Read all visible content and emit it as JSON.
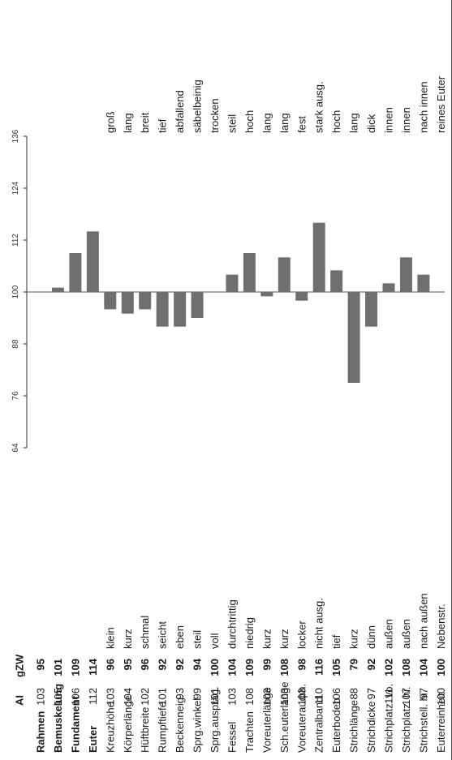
{
  "chart_data": {
    "type": "bar",
    "orientation": "rotated-90-ccw",
    "title": "",
    "xlabel": "",
    "ylabel": "",
    "ylim": [
      64,
      136
    ],
    "yticks": [
      "64",
      "76",
      "88",
      "100",
      "112",
      "124",
      "136"
    ],
    "baseline": 100,
    "grid": false,
    "col_headers": {
      "ai": "AI",
      "gzw": "gZW"
    },
    "bar_color": "#6f6f6f",
    "rows": [
      {
        "name": "Rahmen",
        "ai": "103",
        "gzw": "95",
        "left": "",
        "right": "",
        "bold": true,
        "bar": false
      },
      {
        "name": "Bemuskelung",
        "ai": "105",
        "gzw": "101",
        "left": "",
        "right": "",
        "bold": true,
        "bar": true
      },
      {
        "name": "Fundament",
        "ai": "106",
        "gzw": "109",
        "left": "",
        "right": "",
        "bold": true,
        "bar": true
      },
      {
        "name": "Euter",
        "ai": "112",
        "gzw": "114",
        "left": "",
        "right": "",
        "bold": true,
        "bar": true
      },
      {
        "name": "Kreuzhöhe",
        "ai": "103",
        "gzw": "96",
        "left": "klein",
        "right": "groß",
        "bold": false,
        "bar": true
      },
      {
        "name": "Körperlänge",
        "ai": "104",
        "gzw": "95",
        "left": "kurz",
        "right": "lang",
        "bold": false,
        "bar": true
      },
      {
        "name": "Hüftbreite",
        "ai": "102",
        "gzw": "96",
        "left": "schmal",
        "right": "breit",
        "bold": false,
        "bar": true
      },
      {
        "name": "Rumpftiefe",
        "ai": "101",
        "gzw": "92",
        "left": "seicht",
        "right": "tief",
        "bold": false,
        "bar": true
      },
      {
        "name": "Beckenneig.",
        "ai": "93",
        "gzw": "92",
        "left": "eben",
        "right": "abfallend",
        "bold": false,
        "bar": true
      },
      {
        "name": "Sprg.winkel",
        "ai": "99",
        "gzw": "94",
        "left": "steil",
        "right": "säbelbeinig",
        "bold": false,
        "bar": true
      },
      {
        "name": "Sprg.auspräg.",
        "ai": "101",
        "gzw": "100",
        "left": "voll",
        "right": "trocken",
        "bold": false,
        "bar": true
      },
      {
        "name": "Fessel",
        "ai": "103",
        "gzw": "104",
        "left": "durchtrittig",
        "right": "steil",
        "bold": false,
        "bar": true
      },
      {
        "name": "Trachten",
        "ai": "108",
        "gzw": "109",
        "left": "niedrig",
        "right": "hoch",
        "bold": false,
        "bar": true
      },
      {
        "name": "Voreuterlänge",
        "ai": "103",
        "gzw": "99",
        "left": "kurz",
        "right": "lang",
        "bold": false,
        "bar": true
      },
      {
        "name": "Sch.euterlänge",
        "ai": "103",
        "gzw": "108",
        "left": "kurz",
        "right": "lang",
        "bold": false,
        "bar": true
      },
      {
        "name": "Voreuterauфh.",
        "ai": "103",
        "gzw": "98",
        "left": "locker",
        "right": "fest",
        "bold": false,
        "bar": true
      },
      {
        "name": "Zentralband",
        "ai": "110",
        "gzw": "116",
        "left": "nicht ausg.",
        "right": "stark ausg.",
        "bold": false,
        "bar": true
      },
      {
        "name": "Euterboden",
        "ai": "106",
        "gzw": "105",
        "left": "tief",
        "right": "hoch",
        "bold": false,
        "bar": true
      },
      {
        "name": "Strichlänge",
        "ai": "88",
        "gzw": "79",
        "left": "kurz",
        "right": "lang",
        "bold": false,
        "bar": true
      },
      {
        "name": "Strichdicke",
        "ai": "97",
        "gzw": "92",
        "left": "dünn",
        "right": "dick",
        "bold": false,
        "bar": true
      },
      {
        "name": "Strichplatz. vo.",
        "ai": "111",
        "gzw": "102",
        "left": "außen",
        "right": "innen",
        "bold": false,
        "bar": true
      },
      {
        "name": "Strichplatz. hi.",
        "ai": "107",
        "gzw": "108",
        "left": "außen",
        "right": "innen",
        "bold": false,
        "bar": true
      },
      {
        "name": "Strichstell. hi.",
        "ai": "97",
        "gzw": "104",
        "left": "nach außen",
        "right": "nach innen",
        "bold": false,
        "bar": true
      },
      {
        "name": "Euterreinheit",
        "ai": "100",
        "gzw": "100",
        "left": "Nebenstr.",
        "right": "reines Euter",
        "bold": false,
        "bar": true
      }
    ]
  }
}
